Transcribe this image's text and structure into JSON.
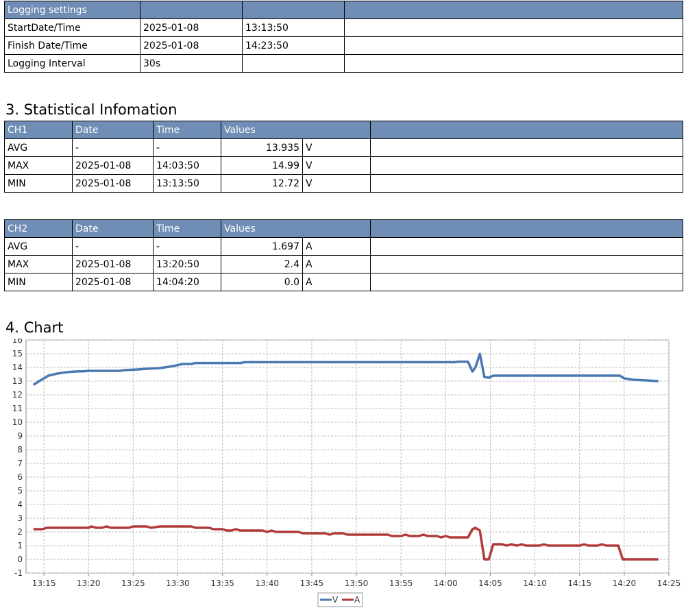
{
  "logging": {
    "headers": [
      "Logging settings",
      "",
      "",
      ""
    ],
    "rows": [
      [
        "StartDate/Time",
        "2025-01-08",
        "13:13:50",
        ""
      ],
      [
        "Finish Date/Time",
        "2025-01-08",
        "14:23:50",
        ""
      ],
      [
        "Logging Interval",
        "30s",
        "",
        ""
      ]
    ]
  },
  "stats_title": "3. Statistical Infomation",
  "ch1": {
    "headers": [
      "CH1",
      "Date",
      "Time",
      "Values",
      ""
    ],
    "rows": [
      {
        "label": "AVG",
        "date": "-",
        "time": "-",
        "value": "13.935",
        "unit": "V"
      },
      {
        "label": "MAX",
        "date": "2025-01-08",
        "time": "14:03:50",
        "value": "14.99",
        "unit": "V"
      },
      {
        "label": "MIN",
        "date": "2025-01-08",
        "time": "13:13:50",
        "value": "12.72",
        "unit": "V"
      }
    ]
  },
  "ch2": {
    "headers": [
      "CH2",
      "Date",
      "Time",
      "Values",
      ""
    ],
    "rows": [
      {
        "label": "AVG",
        "date": "-",
        "time": "-",
        "value": "1.697",
        "unit": "A"
      },
      {
        "label": "MAX",
        "date": "2025-01-08",
        "time": "13:20:50",
        "value": "2.4",
        "unit": "A"
      },
      {
        "label": "MIN",
        "date": "2025-01-08",
        "time": "14:04:20",
        "value": "0.0",
        "unit": "A"
      }
    ]
  },
  "chart_title": "4. Chart",
  "chart_data": {
    "type": "line",
    "title": "",
    "xlabel": "",
    "ylabel": "",
    "x_ticks": [
      "13:15",
      "13:20",
      "13:25",
      "13:30",
      "13:35",
      "13:40",
      "13:45",
      "13:50",
      "13:55",
      "14:00",
      "14:05",
      "14:10",
      "14:15",
      "14:20",
      "14:25"
    ],
    "xlim": [
      "13:13:50",
      "14:25:00"
    ],
    "ylim": [
      -1,
      16
    ],
    "y_ticks": [
      -1,
      0,
      1,
      2,
      3,
      4,
      5,
      6,
      7,
      8,
      9,
      10,
      11,
      12,
      13,
      14,
      15,
      16
    ],
    "grid": true,
    "legend": "bottom-center",
    "series": [
      {
        "name": "V",
        "color": "#4a78b0",
        "points": [
          [
            "13:13:50",
            12.72
          ],
          [
            "13:14:20",
            12.95
          ],
          [
            "13:15:00",
            13.2
          ],
          [
            "13:15:30",
            13.4
          ],
          [
            "13:16:30",
            13.55
          ],
          [
            "13:17:30",
            13.65
          ],
          [
            "13:18:30",
            13.7
          ],
          [
            "13:19:30",
            13.72
          ],
          [
            "13:20:00",
            13.75
          ],
          [
            "13:23:30",
            13.75
          ],
          [
            "13:24:00",
            13.8
          ],
          [
            "13:25:30",
            13.85
          ],
          [
            "13:26:30",
            13.9
          ],
          [
            "13:28:00",
            13.95
          ],
          [
            "13:29:30",
            14.1
          ],
          [
            "13:30:30",
            14.25
          ],
          [
            "13:31:30",
            14.25
          ],
          [
            "13:32:00",
            14.32
          ],
          [
            "13:37:00",
            14.32
          ],
          [
            "13:37:30",
            14.38
          ],
          [
            "14:01:00",
            14.38
          ],
          [
            "14:01:30",
            14.42
          ],
          [
            "14:02:30",
            14.42
          ],
          [
            "14:03:00",
            13.7
          ],
          [
            "14:03:20",
            14.0
          ],
          [
            "14:03:50",
            14.99
          ],
          [
            "14:04:20",
            13.3
          ],
          [
            "14:04:50",
            13.25
          ],
          [
            "14:05:20",
            13.4
          ],
          [
            "14:19:30",
            13.4
          ],
          [
            "14:20:00",
            13.2
          ],
          [
            "14:21:00",
            13.1
          ],
          [
            "14:22:30",
            13.05
          ],
          [
            "14:23:50",
            13.0
          ]
        ]
      },
      {
        "name": "A",
        "color": "#b03a3a",
        "points": [
          [
            "13:13:50",
            2.2
          ],
          [
            "13:14:50",
            2.2
          ],
          [
            "13:15:20",
            2.3
          ],
          [
            "13:19:30",
            2.3
          ],
          [
            "13:20:00",
            2.3
          ],
          [
            "13:20:20",
            2.4
          ],
          [
            "13:20:50",
            2.3
          ],
          [
            "13:21:30",
            2.3
          ],
          [
            "13:22:00",
            2.4
          ],
          [
            "13:22:30",
            2.3
          ],
          [
            "13:24:30",
            2.3
          ],
          [
            "13:25:00",
            2.4
          ],
          [
            "13:26:30",
            2.4
          ],
          [
            "13:27:00",
            2.3
          ],
          [
            "13:28:00",
            2.4
          ],
          [
            "13:31:30",
            2.4
          ],
          [
            "13:32:00",
            2.3
          ],
          [
            "13:33:30",
            2.3
          ],
          [
            "13:34:00",
            2.2
          ],
          [
            "13:35:00",
            2.2
          ],
          [
            "13:35:30",
            2.1
          ],
          [
            "13:36:00",
            2.1
          ],
          [
            "13:36:30",
            2.2
          ],
          [
            "13:37:00",
            2.1
          ],
          [
            "13:39:30",
            2.1
          ],
          [
            "13:40:00",
            2.0
          ],
          [
            "13:40:30",
            2.1
          ],
          [
            "13:41:00",
            2.0
          ],
          [
            "13:43:30",
            2.0
          ],
          [
            "13:44:00",
            1.9
          ],
          [
            "13:46:30",
            1.9
          ],
          [
            "13:47:00",
            1.8
          ],
          [
            "13:47:30",
            1.9
          ],
          [
            "13:48:30",
            1.9
          ],
          [
            "13:49:00",
            1.8
          ],
          [
            "13:53:30",
            1.8
          ],
          [
            "13:54:00",
            1.7
          ],
          [
            "13:55:00",
            1.7
          ],
          [
            "13:55:30",
            1.8
          ],
          [
            "13:56:00",
            1.7
          ],
          [
            "13:57:00",
            1.7
          ],
          [
            "13:57:30",
            1.8
          ],
          [
            "13:58:00",
            1.7
          ],
          [
            "13:59:00",
            1.7
          ],
          [
            "13:59:30",
            1.6
          ],
          [
            "14:00:00",
            1.7
          ],
          [
            "14:00:30",
            1.6
          ],
          [
            "14:02:30",
            1.6
          ],
          [
            "14:03:00",
            2.2
          ],
          [
            "14:03:20",
            2.3
          ],
          [
            "14:03:50",
            2.1
          ],
          [
            "14:04:20",
            0.0
          ],
          [
            "14:04:50",
            0.0
          ],
          [
            "14:05:20",
            1.1
          ],
          [
            "14:06:20",
            1.1
          ],
          [
            "14:06:50",
            1.0
          ],
          [
            "14:07:20",
            1.1
          ],
          [
            "14:08:00",
            1.0
          ],
          [
            "14:08:30",
            1.1
          ],
          [
            "14:09:00",
            1.0
          ],
          [
            "14:10:30",
            1.0
          ],
          [
            "14:11:00",
            1.1
          ],
          [
            "14:11:30",
            1.0
          ],
          [
            "14:15:00",
            1.0
          ],
          [
            "14:15:30",
            1.1
          ],
          [
            "14:16:00",
            1.0
          ],
          [
            "14:17:00",
            1.0
          ],
          [
            "14:17:30",
            1.1
          ],
          [
            "14:18:00",
            1.0
          ],
          [
            "14:19:20",
            1.0
          ],
          [
            "14:19:50",
            0.0
          ],
          [
            "14:23:50",
            0.0
          ]
        ]
      }
    ]
  }
}
